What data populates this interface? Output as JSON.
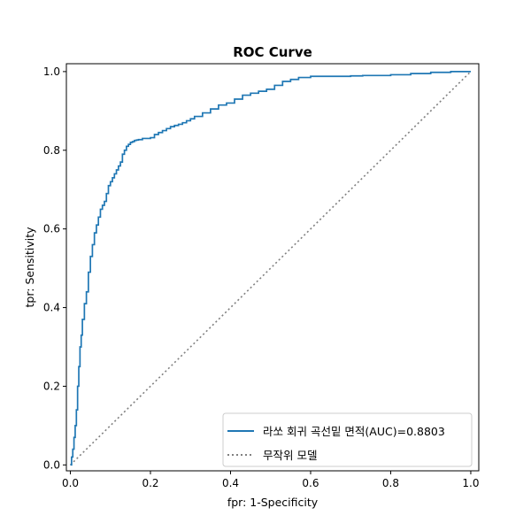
{
  "chart_data": {
    "type": "line",
    "title": "ROC Curve",
    "xlabel": "fpr: 1-Specificity",
    "ylabel": "tpr: Sensitivity",
    "xlim": [
      -0.01,
      1.02
    ],
    "ylim": [
      -0.015,
      1.02
    ],
    "xticks": [
      0.0,
      0.2,
      0.4,
      0.6,
      0.8,
      1.0
    ],
    "xtick_labels": [
      "0.0",
      "0.2",
      "0.4",
      "0.6",
      "0.8",
      "1.0"
    ],
    "yticks": [
      0.0,
      0.2,
      0.4,
      0.6,
      0.8,
      1.0
    ],
    "ytick_labels": [
      "0.0",
      "0.2",
      "0.4",
      "0.6",
      "0.8",
      "1.0"
    ],
    "grid": false,
    "legend_position": "lower-right",
    "series": [
      {
        "name": "라쏘 회귀 곡선밑 면적(AUC)=0.8803",
        "style": "solid",
        "color": "#1f77b4",
        "x": [
          0.0,
          0.003,
          0.006,
          0.009,
          0.012,
          0.015,
          0.018,
          0.021,
          0.024,
          0.027,
          0.03,
          0.035,
          0.04,
          0.045,
          0.05,
          0.055,
          0.06,
          0.065,
          0.07,
          0.075,
          0.08,
          0.085,
          0.09,
          0.095,
          0.1,
          0.105,
          0.11,
          0.115,
          0.12,
          0.125,
          0.13,
          0.135,
          0.14,
          0.145,
          0.15,
          0.155,
          0.16,
          0.165,
          0.17,
          0.18,
          0.19,
          0.2,
          0.21,
          0.22,
          0.23,
          0.24,
          0.25,
          0.26,
          0.27,
          0.28,
          0.29,
          0.3,
          0.31,
          0.33,
          0.35,
          0.37,
          0.39,
          0.41,
          0.43,
          0.45,
          0.47,
          0.49,
          0.51,
          0.53,
          0.55,
          0.57,
          0.6,
          0.65,
          0.7,
          0.73,
          0.8,
          0.85,
          0.9,
          0.95,
          1.0
        ],
        "y": [
          0.0,
          0.02,
          0.04,
          0.07,
          0.1,
          0.14,
          0.2,
          0.25,
          0.3,
          0.33,
          0.37,
          0.41,
          0.44,
          0.49,
          0.53,
          0.56,
          0.59,
          0.61,
          0.63,
          0.65,
          0.66,
          0.67,
          0.69,
          0.71,
          0.72,
          0.73,
          0.74,
          0.75,
          0.76,
          0.77,
          0.79,
          0.8,
          0.81,
          0.815,
          0.82,
          0.822,
          0.825,
          0.826,
          0.827,
          0.83,
          0.83,
          0.832,
          0.84,
          0.845,
          0.85,
          0.855,
          0.86,
          0.863,
          0.866,
          0.87,
          0.875,
          0.88,
          0.886,
          0.895,
          0.905,
          0.915,
          0.92,
          0.93,
          0.94,
          0.945,
          0.95,
          0.955,
          0.965,
          0.975,
          0.98,
          0.985,
          0.988,
          0.988,
          0.989,
          0.99,
          0.992,
          0.995,
          0.998,
          1.0,
          1.0
        ]
      },
      {
        "name": "무작위 모델",
        "style": "dotted",
        "color": "#808080",
        "x": [
          0.0,
          1.0
        ],
        "y": [
          0.0,
          1.0
        ]
      }
    ]
  }
}
